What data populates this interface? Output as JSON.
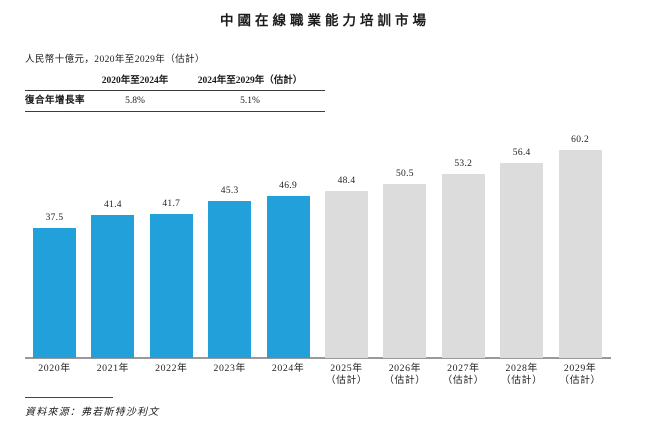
{
  "title": "中國在線職業能力培訓市場",
  "subtitle": "人民幣十億元，2020年至2029年（估計）",
  "growth_table": {
    "row_label": "復合年增長率",
    "col_headers": [
      "2020年至2024年",
      "2024年至2029年（估計）"
    ],
    "values": [
      "5.8%",
      "5.1%"
    ]
  },
  "chart_data": {
    "type": "bar",
    "title": "中國在線職業能力培訓市場",
    "unit": "人民幣十億元",
    "categories": [
      "2020年",
      "2021年",
      "2022年",
      "2023年",
      "2024年",
      "2025年（估計）",
      "2026年（估計）",
      "2027年（估計）",
      "2028年（估計）",
      "2029年（估計）"
    ],
    "values": [
      37.5,
      41.4,
      41.7,
      45.3,
      46.9,
      48.4,
      50.5,
      53.2,
      56.4,
      60.2
    ],
    "actual_count": 5,
    "colors": {
      "actual": "#22A0DA",
      "estimate": "#DCDCDC"
    },
    "ylim": [
      0,
      65
    ],
    "grid": false,
    "legend": "none",
    "value_labels": true
  },
  "source": "資料來源：弗若斯特沙利文"
}
